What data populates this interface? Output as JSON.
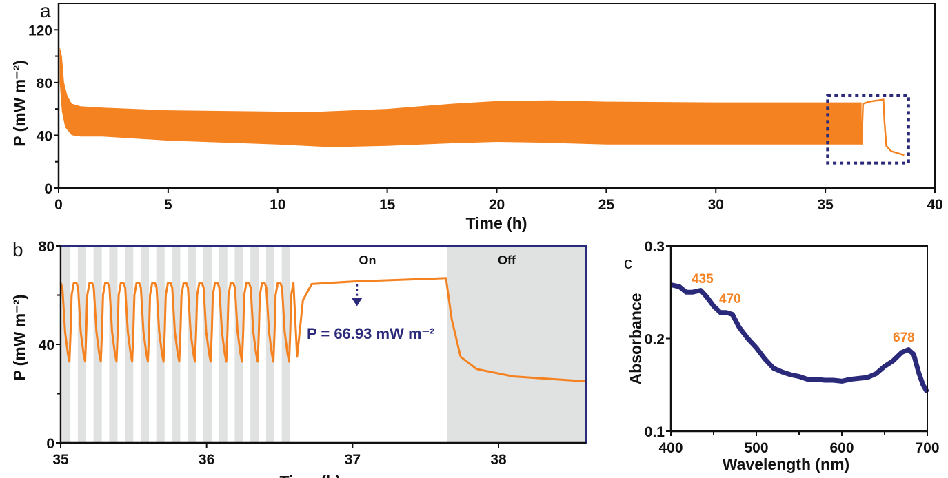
{
  "colors": {
    "orange": "#f58220",
    "navy": "#2b2a7a",
    "shade": "#e0e1e1"
  },
  "chart_data": [
    {
      "panel": "a",
      "type": "area",
      "xlabel": "Time (h)",
      "ylabel": "P (mW m⁻²)",
      "xlim": [
        0,
        40
      ],
      "ylim": [
        0,
        140
      ],
      "xticks": [
        0,
        5,
        10,
        15,
        20,
        25,
        30,
        35,
        40
      ],
      "yticks": [
        0,
        40,
        80,
        120
      ],
      "yminor": [
        20,
        60,
        100
      ],
      "grid": false,
      "envelope_upper": [
        [
          0.05,
          107
        ],
        [
          0.15,
          100
        ],
        [
          0.25,
          80
        ],
        [
          0.4,
          70
        ],
        [
          0.6,
          64
        ],
        [
          1,
          62
        ],
        [
          2,
          61
        ],
        [
          5,
          59
        ],
        [
          10,
          58
        ],
        [
          12,
          58
        ],
        [
          15,
          60
        ],
        [
          18,
          64
        ],
        [
          20,
          66
        ],
        [
          22.5,
          66.5
        ],
        [
          25,
          65.5
        ],
        [
          30,
          65
        ],
        [
          36.65,
          65
        ]
      ],
      "envelope_lower": [
        [
          0.05,
          80
        ],
        [
          0.15,
          58
        ],
        [
          0.3,
          46
        ],
        [
          0.6,
          40
        ],
        [
          1,
          39
        ],
        [
          2,
          39
        ],
        [
          5,
          36
        ],
        [
          10,
          33
        ],
        [
          12.5,
          31
        ],
        [
          15,
          32
        ],
        [
          18,
          34
        ],
        [
          20,
          35
        ],
        [
          22,
          34.5
        ],
        [
          25,
          33
        ],
        [
          30,
          33
        ],
        [
          36.65,
          33
        ]
      ],
      "continuous": [
        [
          36.65,
          33
        ],
        [
          36.72,
          64
        ],
        [
          37,
          65.5
        ],
        [
          37.65,
          67
        ],
        [
          37.7,
          50
        ],
        [
          37.78,
          32
        ],
        [
          38,
          28
        ],
        [
          38.6,
          25
        ]
      ],
      "highlight_box": {
        "x": [
          35.1,
          38.8
        ],
        "y": [
          19,
          70
        ]
      }
    },
    {
      "panel": "b",
      "type": "line",
      "xlabel": "Time (h)",
      "ylabel": "P (mW m⁻²)",
      "xlim": [
        35,
        38.6
      ],
      "ylim": [
        0,
        80
      ],
      "xticks": [
        35,
        36,
        37,
        38
      ],
      "yticks": [
        0,
        40,
        80
      ],
      "yminor": [
        20,
        60
      ],
      "cycling": {
        "start": 35.0,
        "period": 0.1075,
        "count": 15,
        "dark_duration": 0.057,
        "p_max": 65,
        "p_min": 33
      },
      "plateau": [
        [
          36.62,
          35
        ],
        [
          36.66,
          58
        ],
        [
          36.72,
          64.5
        ],
        [
          37,
          65.5
        ],
        [
          37.64,
          66.9
        ],
        [
          37.68,
          50
        ],
        [
          37.74,
          35
        ],
        [
          37.85,
          30
        ],
        [
          38.1,
          27
        ],
        [
          38.6,
          25
        ]
      ],
      "off_region": [
        37.65,
        38.6
      ],
      "annotations": {
        "on": "On",
        "off": "Off",
        "value": "P = 66.93 mW m⁻²",
        "arrow_at": 37.03
      }
    },
    {
      "panel": "c",
      "type": "line",
      "xlabel": "Wavelength (nm)",
      "ylabel": "Absorbance",
      "xlim": [
        400,
        700
      ],
      "ylim": [
        0.1,
        0.3
      ],
      "xticks": [
        400,
        500,
        600,
        700
      ],
      "xminor": [
        450,
        550,
        650
      ],
      "yticks": [
        0.1,
        0.2,
        0.3
      ],
      "ytick_labels": [
        "0.1",
        "0.2",
        "0.3"
      ],
      "x": [
        400,
        410,
        418,
        425,
        435,
        442,
        450,
        458,
        465,
        472,
        480,
        490,
        500,
        510,
        520,
        530,
        540,
        550,
        560,
        570,
        580,
        590,
        600,
        610,
        620,
        630,
        640,
        650,
        660,
        670,
        678,
        684,
        690,
        695,
        700
      ],
      "y": [
        0.258,
        0.256,
        0.25,
        0.25,
        0.252,
        0.245,
        0.235,
        0.228,
        0.228,
        0.226,
        0.212,
        0.2,
        0.19,
        0.178,
        0.168,
        0.164,
        0.161,
        0.159,
        0.156,
        0.156,
        0.155,
        0.155,
        0.154,
        0.156,
        0.157,
        0.158,
        0.162,
        0.17,
        0.176,
        0.185,
        0.188,
        0.183,
        0.163,
        0.15,
        0.142
      ],
      "peak_labels": [
        "435",
        "470",
        "678"
      ]
    }
  ],
  "panel_labels": [
    "a",
    "b",
    "c"
  ]
}
